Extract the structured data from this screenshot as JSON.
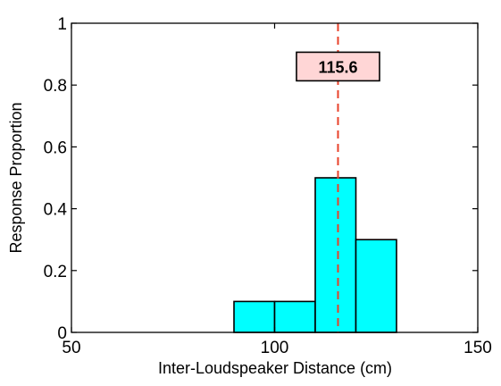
{
  "chart_data": {
    "type": "bar",
    "title": "",
    "xlabel": "Inter-Loudspeaker Distance (cm)",
    "ylabel": "Response Proportion",
    "xlim": [
      50,
      150
    ],
    "ylim": [
      0,
      1
    ],
    "xticks": [
      50,
      100,
      150
    ],
    "yticks": [
      0,
      0.2,
      0.4,
      0.6,
      0.8,
      1
    ],
    "xtick_labels": [
      "50",
      "100",
      "150"
    ],
    "ytick_labels": [
      "0",
      "0.2",
      "0.4",
      "0.6",
      "0.8",
      "1"
    ],
    "grid": false,
    "bins": [
      {
        "x0": 90,
        "x1": 100,
        "value": 0.1
      },
      {
        "x0": 100,
        "x1": 110,
        "value": 0.1
      },
      {
        "x0": 110,
        "x1": 120,
        "value": 0.5
      },
      {
        "x0": 120,
        "x1": 130,
        "value": 0.3
      }
    ],
    "reference_line": {
      "x": 115.6,
      "label": "115.6",
      "label_y": 0.86
    }
  },
  "colors": {
    "bar_fill": "#00ffff",
    "bar_edge": "#000000",
    "reference_line": "#e8412a",
    "annotation_fill": "#ffd6d6",
    "axes": "#000000"
  }
}
